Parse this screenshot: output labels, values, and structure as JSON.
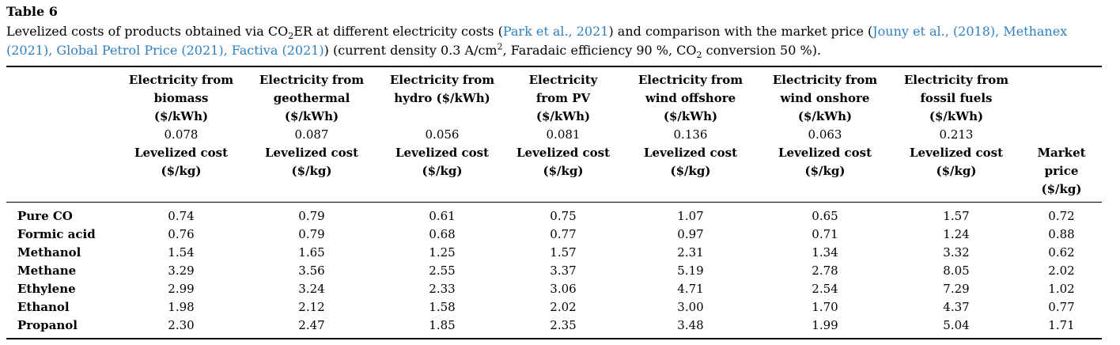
{
  "table_label": "Table 6",
  "caption": {
    "p1": "Levelized costs of products obtained via CO",
    "sub1": "2",
    "p2": "ER at different electricity costs (",
    "ref1": "Park et al., 2021",
    "p3": ") and comparison with the market price (",
    "ref2": "Jouny et al., (2018), Methanex (2021), Global Petrol Price (2021), Factiva (2021)",
    "p4": ") (current density 0.3 A/cm",
    "sup1": "2",
    "p5": ", Faradaic efficiency 90 %, CO",
    "sub2": "2",
    "p6": " conversion 50 %)."
  },
  "columns": [
    {
      "l1": "Electricity from",
      "l2": "biomass",
      "l3": "($/kWh)",
      "price": "0.078",
      "c1": "Levelized cost",
      "c2": "($/kg)"
    },
    {
      "l1": "Electricity from",
      "l2": "geothermal",
      "l3": "($/kWh)",
      "price": "0.087",
      "c1": "Levelized cost",
      "c2": "($/kg)"
    },
    {
      "l1": "Electricity from",
      "l2": "hydro ($/kWh)",
      "l3": "",
      "price": "0.056",
      "c1": "Levelized cost",
      "c2": "($/kg)"
    },
    {
      "l1": "Electricity",
      "l2": "from PV",
      "l3": "($/kWh)",
      "price": "0.081",
      "c1": "Levelized cost",
      "c2": "($/kg)"
    },
    {
      "l1": "Electricity from",
      "l2": "wind offshore",
      "l3": "($/kWh)",
      "price": "0.136",
      "c1": "Levelized cost",
      "c2": "($/kg)"
    },
    {
      "l1": "Electricity from",
      "l2": "wind onshore",
      "l3": "($/kWh)",
      "price": "0.063",
      "c1": "Levelized cost",
      "c2": "($/kg)"
    },
    {
      "l1": "Electricity from",
      "l2": "fossil fuels",
      "l3": "($/kWh)",
      "price": "0.213",
      "c1": "Levelized cost",
      "c2": "($/kg)"
    }
  ],
  "market_header": {
    "l1": "Market",
    "l2": "price",
    "l3": "($/kg)"
  },
  "rows": [
    {
      "name": "Pure CO",
      "v": [
        "0.74",
        "0.79",
        "0.61",
        "0.75",
        "1.07",
        "0.65",
        "1.57",
        "0.72"
      ]
    },
    {
      "name": "Formic acid",
      "v": [
        "0.76",
        "0.79",
        "0.68",
        "0.77",
        "0.97",
        "0.71",
        "1.24",
        "0.88"
      ]
    },
    {
      "name": "Methanol",
      "v": [
        "1.54",
        "1.65",
        "1.25",
        "1.57",
        "2.31",
        "1.34",
        "3.32",
        "0.62"
      ]
    },
    {
      "name": "Methane",
      "v": [
        "3.29",
        "3.56",
        "2.55",
        "3.37",
        "5.19",
        "2.78",
        "8.05",
        "2.02"
      ]
    },
    {
      "name": "Ethylene",
      "v": [
        "2.99",
        "3.24",
        "2.33",
        "3.06",
        "4.71",
        "2.54",
        "7.29",
        "1.02"
      ]
    },
    {
      "name": "Ethanol",
      "v": [
        "1.98",
        "2.12",
        "1.58",
        "2.02",
        "3.00",
        "1.70",
        "4.37",
        "0.77"
      ]
    },
    {
      "name": "Propanol",
      "v": [
        "2.30",
        "2.47",
        "1.85",
        "2.35",
        "3.48",
        "1.99",
        "5.04",
        "1.71"
      ]
    }
  ],
  "colors": {
    "reference_link": "#2e7fc0",
    "text": "#000000"
  }
}
